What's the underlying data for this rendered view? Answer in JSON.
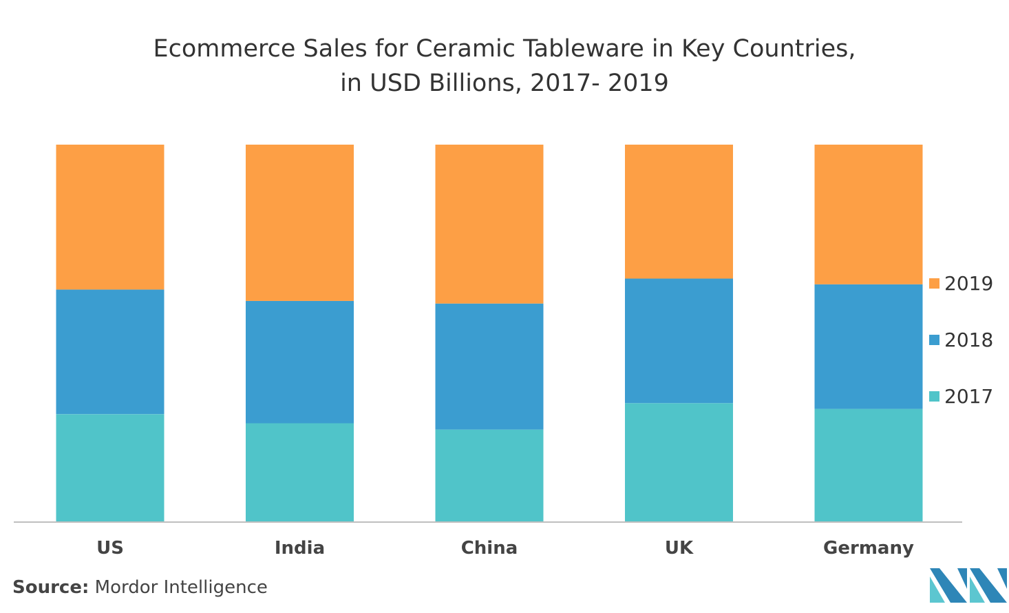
{
  "chart_data": {
    "type": "bar",
    "stacked": true,
    "title_lines": [
      "Ecommerce Sales for Ceramic Tableware in Key Countries,",
      "in USD Billions, 2017- 2019"
    ],
    "categories": [
      "US",
      "India",
      "China",
      "UK",
      "Germany"
    ],
    "series": [
      {
        "name": "2017",
        "color": "#50c4c9",
        "values": [
          28.6,
          26.2,
          24.5,
          31.5,
          30.0
        ]
      },
      {
        "name": "2018",
        "color": "#3b9dd0",
        "values": [
          33.0,
          32.4,
          33.4,
          33.0,
          33.0
        ]
      },
      {
        "name": "2019",
        "color": "#fd9f45",
        "values": [
          38.4,
          41.4,
          42.1,
          35.5,
          37.0
        ]
      }
    ],
    "ylim": [
      0,
      100
    ],
    "grid": false,
    "legend_position": "right"
  },
  "source": {
    "prefix": "Source:",
    "text": " Mordor Intelligence"
  },
  "logo": {
    "name": "mordor-intelligence-logo",
    "colors": [
      "#2e86b7",
      "#5cc6d0"
    ]
  }
}
